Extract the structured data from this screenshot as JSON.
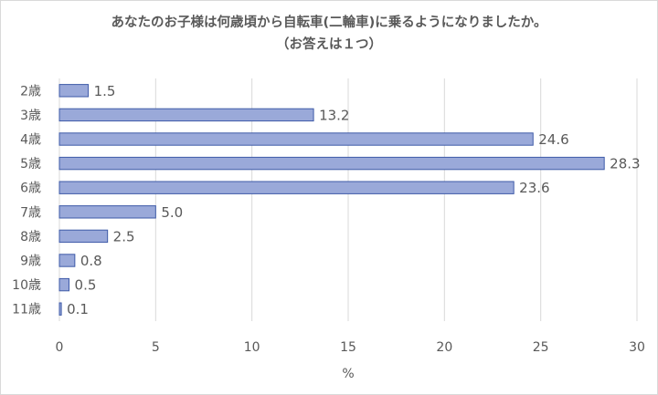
{
  "chart_data": {
    "type": "bar",
    "orientation": "horizontal",
    "title": "あなたのお子様は何歳頃から自転車(二輪車)に乗るようになりましたか。",
    "subtitle": "（お答えは１つ）",
    "xlabel": "%",
    "ylabel": "",
    "categories": [
      "2歳",
      "3歳",
      "4歳",
      "5歳",
      "6歳",
      "7歳",
      "8歳",
      "9歳",
      "10歳",
      "11歳"
    ],
    "values": [
      1.5,
      13.2,
      24.6,
      28.3,
      23.6,
      5.0,
      2.5,
      0.8,
      0.5,
      0.1
    ],
    "value_labels": [
      "1.5",
      "13.2",
      "24.6",
      "28.3",
      "23.6",
      "5.0",
      "2.5",
      "0.8",
      "0.5",
      "0.1"
    ],
    "xlim": [
      0,
      30
    ],
    "xticks": [
      0,
      5,
      10,
      15,
      20,
      25,
      30
    ],
    "grid": "vertical",
    "legend": "none",
    "colors": {
      "bar_fill": "#9aa9d9",
      "bar_stroke": "#3e5aa8",
      "grid": "#d9d9d9",
      "text": "#595959"
    }
  }
}
